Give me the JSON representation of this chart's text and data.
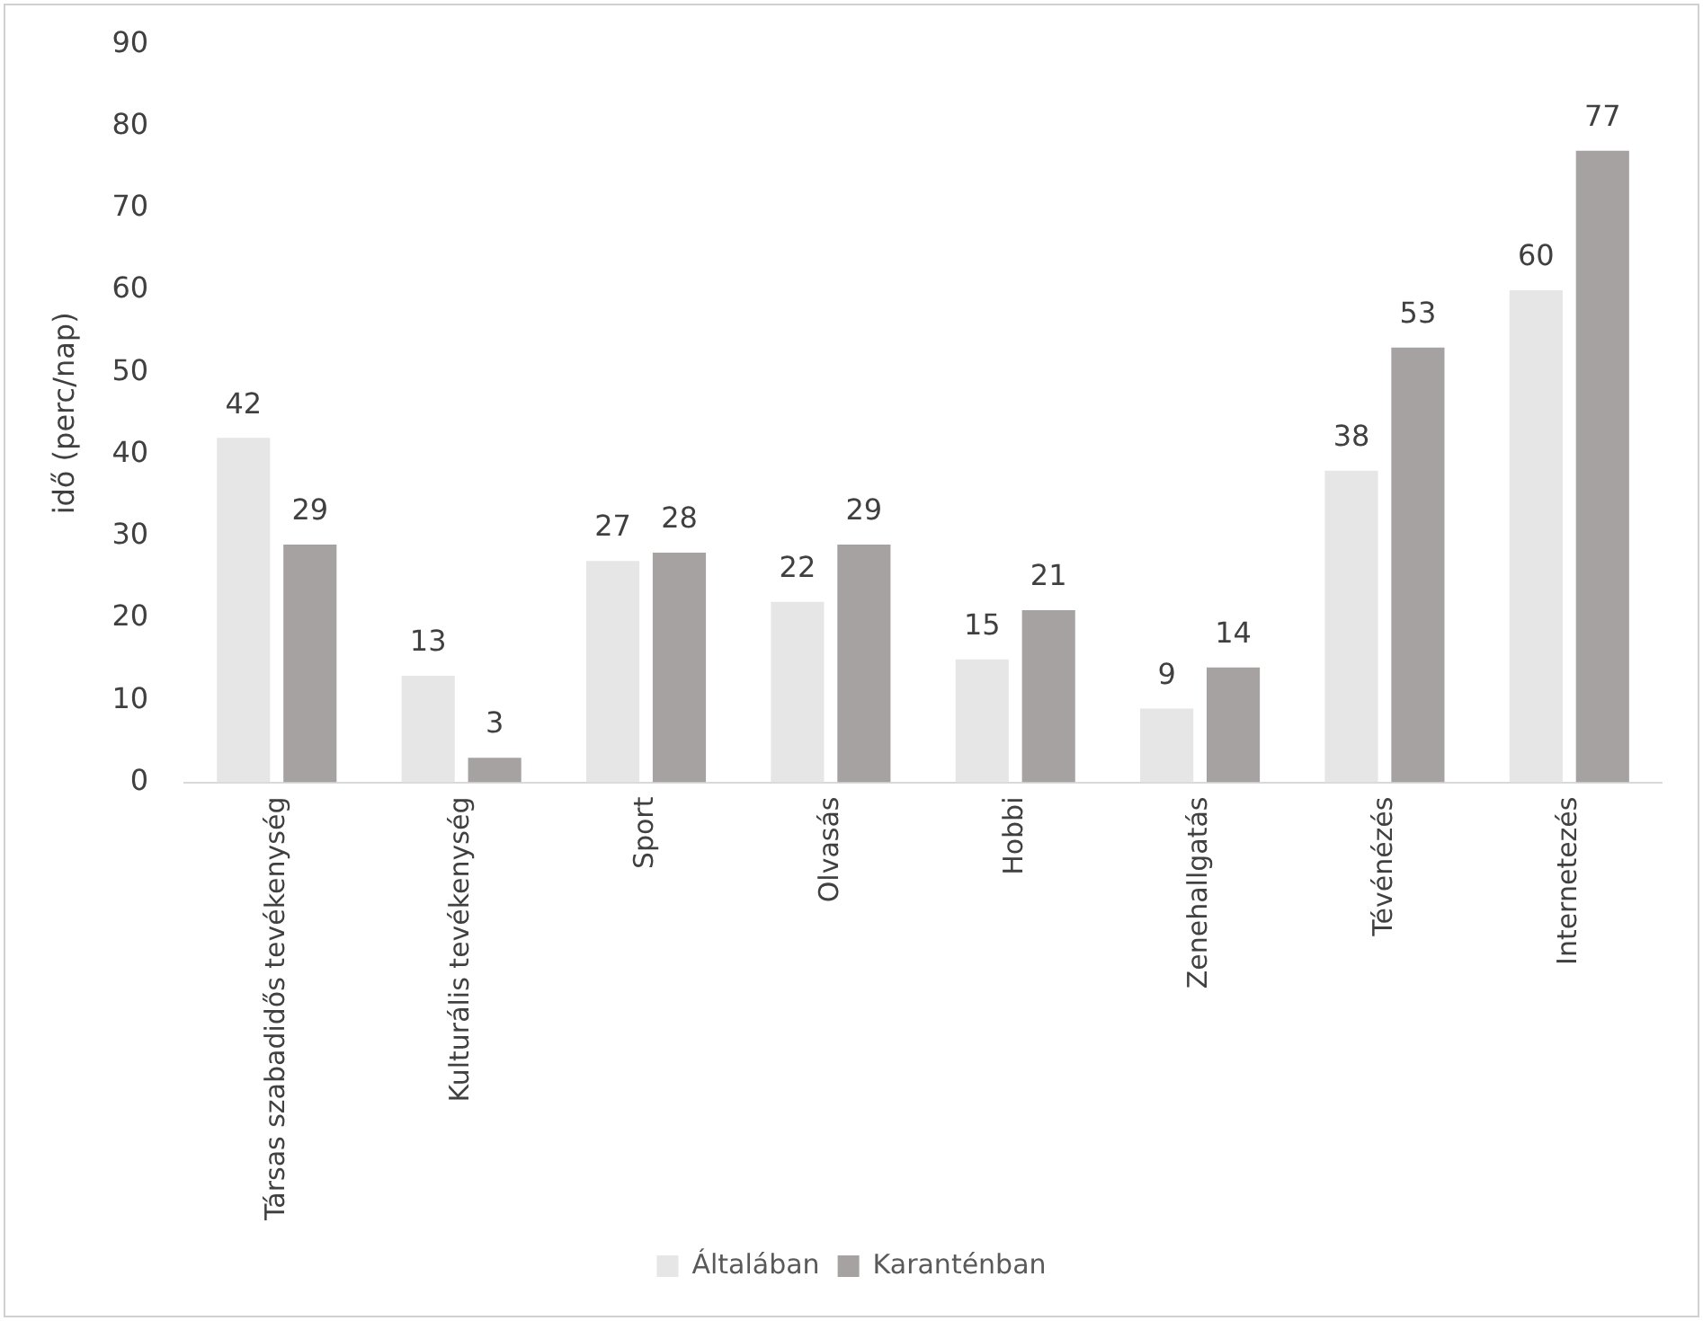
{
  "chart_data": {
    "type": "bar",
    "ylabel": "idő (perc/nap)",
    "categories": [
      "Társas szabadidős tevékenység",
      "Kulturális tevékenység",
      "Sport",
      "Olvasás",
      "Hobbi",
      "Zenehallgatás",
      "Tévénézés",
      "Internetezés"
    ],
    "series": [
      {
        "name": "Általában",
        "color": "#e7e6e6",
        "values": [
          42,
          13,
          27,
          22,
          15,
          9,
          38,
          60
        ]
      },
      {
        "name": "Karanténban",
        "color": "#a6a2a2",
        "values": [
          29,
          3,
          28,
          29,
          21,
          14,
          53,
          77
        ]
      }
    ],
    "ylim": [
      0,
      90
    ],
    "yticks": [
      0,
      10,
      20,
      30,
      40,
      50,
      60,
      70,
      80,
      90
    ],
    "grid": false,
    "legend": "bottom",
    "data_labels": true
  }
}
